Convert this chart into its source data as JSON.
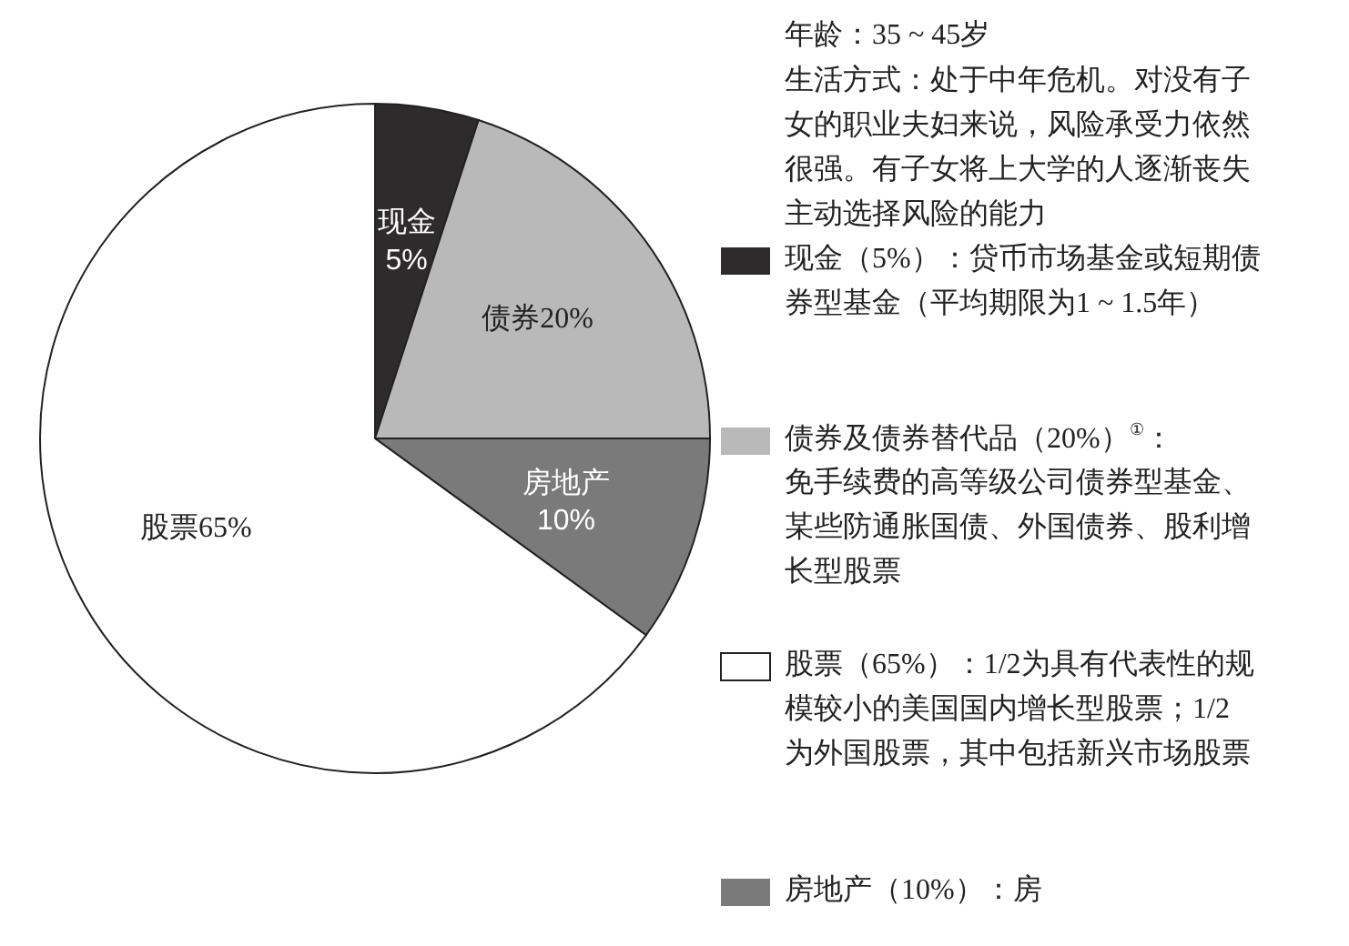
{
  "chart_data": {
    "type": "pie",
    "categories": [
      "现金",
      "债券",
      "房地产",
      "股票"
    ],
    "values": [
      5,
      20,
      10,
      65
    ],
    "value_labels": [
      "5%",
      "20%",
      "10%",
      "65%"
    ],
    "colors": [
      "#2e2b2c",
      "#b9b9b9",
      "#7a7a7a",
      "#ffffff"
    ],
    "annotations": [
      "年龄：35 ~ 45岁",
      "生活方式：处于中年危机。对没有子女的职业夫妇来说，风险承受力依然很强。有子女将上大学的人逐渐丧失主动选择风险的能力",
      "现金（5%）：贷币市场基金或短期债券型基金（平均期限为1 ~ 1.5年）",
      "债券及债券替代品（20%）$^{①}$：",
      "免手续费的高等级公司债券型基金、某些防通胀国债、外国债券、股利增长型股票",
      "股票（65%）：1/2为具有代表性的规模较小的美国国内增长型股票；1/2为外国股票，其中包括新兴市场股票",
      "房地产（10%）：房"
    ]
  }
}
